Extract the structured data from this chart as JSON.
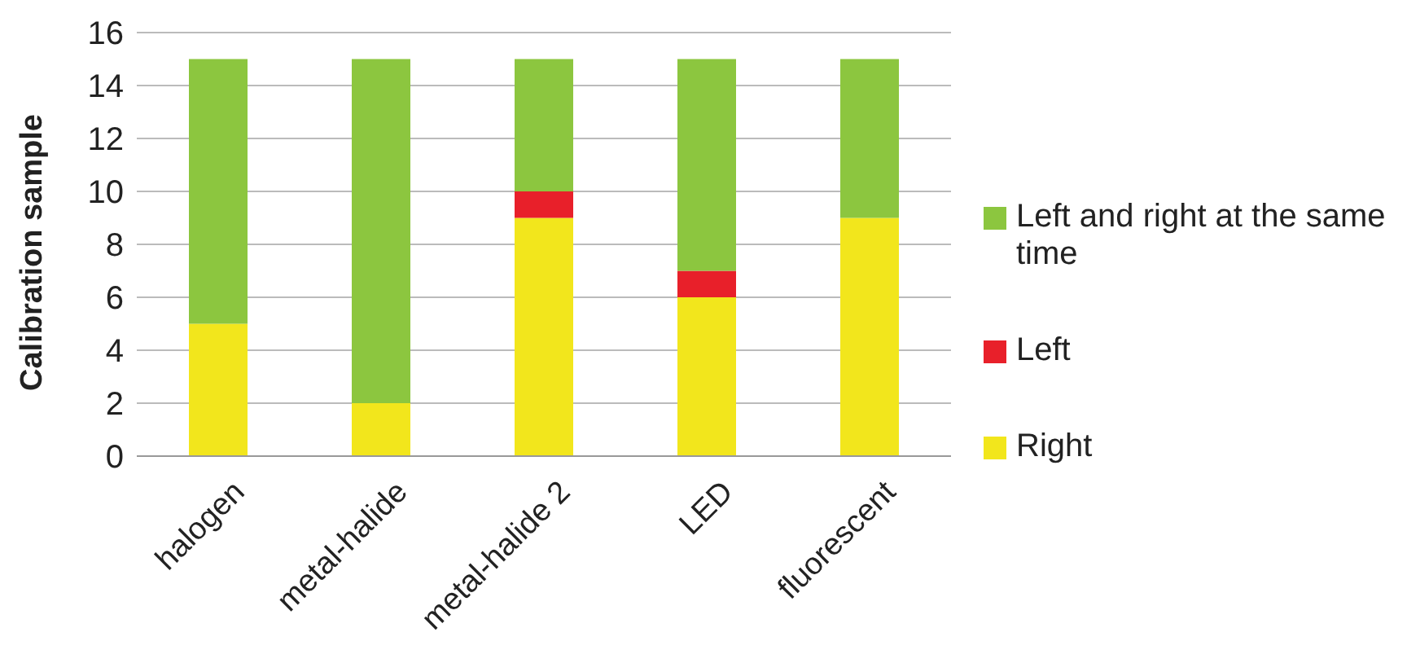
{
  "chart_data": {
    "type": "bar",
    "ylabel": "Calibration sample",
    "categories": [
      "halogen",
      "metal-halide",
      "metal-halide 2",
      "LED",
      "fluorescent"
    ],
    "stacked": true,
    "ylim": [
      0,
      16
    ],
    "yticks": [
      0,
      2,
      4,
      6,
      8,
      10,
      12,
      14,
      16
    ],
    "grid": "y",
    "legend": "right",
    "series": [
      {
        "name": "Right",
        "color": "#f2e61c",
        "values": [
          5,
          2,
          9,
          6,
          9
        ]
      },
      {
        "name": "Left",
        "color": "#e8202a",
        "values": [
          0,
          0,
          1,
          1,
          0
        ]
      },
      {
        "name": "Left and right at the same time",
        "color": "#8cc63f",
        "values": [
          10,
          13,
          5,
          8,
          6
        ]
      }
    ]
  }
}
